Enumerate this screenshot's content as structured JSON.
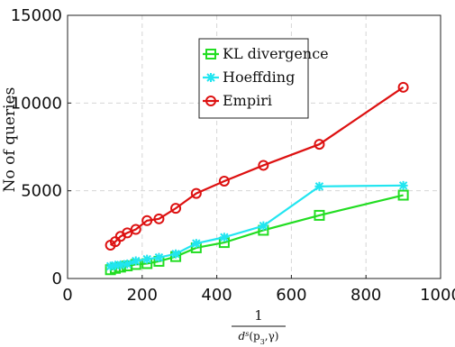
{
  "chart_data": {
    "type": "line",
    "title": "",
    "ylabel": "No of queries",
    "xlabel_parts": {
      "numerator": "1",
      "d": "d",
      "sup": "s",
      "args": "(p",
      "sub": "3",
      "tail": ",γ)"
    },
    "xlim": [
      0,
      1000
    ],
    "ylim": [
      0,
      15000
    ],
    "xticks": [
      0,
      200,
      400,
      600,
      800,
      1000
    ],
    "yticks": [
      0,
      5000,
      10000,
      15000
    ],
    "grid": true,
    "legend_position": "top-center",
    "series": [
      {
        "name": "KL divergence",
        "color": "#22dd22",
        "marker": "square",
        "x": [
          115,
          128,
          142,
          160,
          183,
          213,
          245,
          290,
          345,
          420,
          525,
          675,
          900
        ],
        "y": [
          500,
          580,
          650,
          720,
          800,
          850,
          980,
          1250,
          1750,
          2050,
          2750,
          3600,
          4750
        ]
      },
      {
        "name": "Hoeffding",
        "color": "#22e5f0",
        "marker": "star",
        "x": [
          115,
          128,
          142,
          160,
          183,
          213,
          245,
          290,
          345,
          420,
          525,
          675,
          900
        ],
        "y": [
          700,
          750,
          780,
          830,
          1000,
          1100,
          1200,
          1400,
          2000,
          2350,
          3000,
          5250,
          5300
        ]
      },
      {
        "name": "Empiri",
        "color": "#dd1111",
        "marker": "circle",
        "x": [
          115,
          128,
          142,
          160,
          183,
          213,
          245,
          290,
          345,
          420,
          525,
          675,
          900
        ],
        "y": [
          1900,
          2100,
          2400,
          2600,
          2800,
          3300,
          3400,
          4000,
          4850,
          5550,
          6450,
          7650,
          10900
        ]
      }
    ]
  }
}
